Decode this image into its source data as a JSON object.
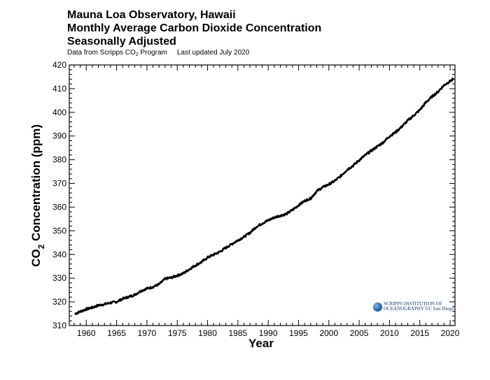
{
  "header": {
    "title_line1": "Mauna Loa Observatory, Hawaii",
    "title_line2": "Monthly Average Carbon Dioxide Concentration",
    "title_line3": "Seasonally Adjusted",
    "source_prefix": "Data from Scripps CO",
    "source_sub": "2",
    "source_suffix": " Program",
    "updated": "Last updated July 2020"
  },
  "logo": {
    "line1": "SCRIPPS INSTITUTION OF",
    "line2": "OCEANOGRAPHY UC San Diego"
  },
  "colors": {
    "series": "#000000",
    "axis": "#000000"
  },
  "chart_data": {
    "type": "line",
    "title": "Mauna Loa Observatory, Hawaii Monthly Average Carbon Dioxide Concentration Seasonally Adjusted",
    "xlabel": "Year",
    "ylabel_prefix": "CO",
    "ylabel_sub": "2",
    "ylabel_suffix": " Concentration (ppm)",
    "xlim": [
      1957.2,
      2020.8
    ],
    "ylim": [
      310,
      420
    ],
    "x_ticks": [
      1960,
      1965,
      1970,
      1975,
      1980,
      1985,
      1990,
      1995,
      2000,
      2005,
      2010,
      2015,
      2020
    ],
    "y_ticks": [
      310,
      320,
      330,
      340,
      350,
      360,
      370,
      380,
      390,
      400,
      410,
      420
    ],
    "grid": false,
    "series": [
      {
        "name": "Seasonally adjusted CO2 (ppm)",
        "x": [
          1958.2,
          1959,
          1960,
          1961,
          1962,
          1963,
          1964,
          1965,
          1966,
          1967,
          1968,
          1969,
          1970,
          1971,
          1972,
          1973,
          1974,
          1975,
          1976,
          1977,
          1978,
          1979,
          1980,
          1981,
          1982,
          1983,
          1984,
          1985,
          1986,
          1987,
          1988,
          1989,
          1990,
          1991,
          1992,
          1993,
          1994,
          1995,
          1996,
          1997,
          1998,
          1999,
          2000,
          2001,
          2002,
          2003,
          2004,
          2005,
          2006,
          2007,
          2008,
          2009,
          2010,
          2011,
          2012,
          2013,
          2014,
          2015,
          2016,
          2017,
          2018,
          2019,
          2020.5
        ],
        "values": [
          315.0,
          315.9,
          316.9,
          317.6,
          318.5,
          319.0,
          319.6,
          320.0,
          321.3,
          322.1,
          323.0,
          324.6,
          325.6,
          326.3,
          327.4,
          329.7,
          330.2,
          331.1,
          332.0,
          333.8,
          335.4,
          336.8,
          338.7,
          339.9,
          341.1,
          342.8,
          344.4,
          346.0,
          347.4,
          349.2,
          351.6,
          353.1,
          354.4,
          355.6,
          356.4,
          357.1,
          358.8,
          360.8,
          362.6,
          363.7,
          366.7,
          368.4,
          369.6,
          371.1,
          373.2,
          375.8,
          377.5,
          379.8,
          381.9,
          383.8,
          385.6,
          387.4,
          389.9,
          391.6,
          393.9,
          396.5,
          398.7,
          401.0,
          404.2,
          406.6,
          408.7,
          411.5,
          414.0
        ]
      }
    ]
  }
}
